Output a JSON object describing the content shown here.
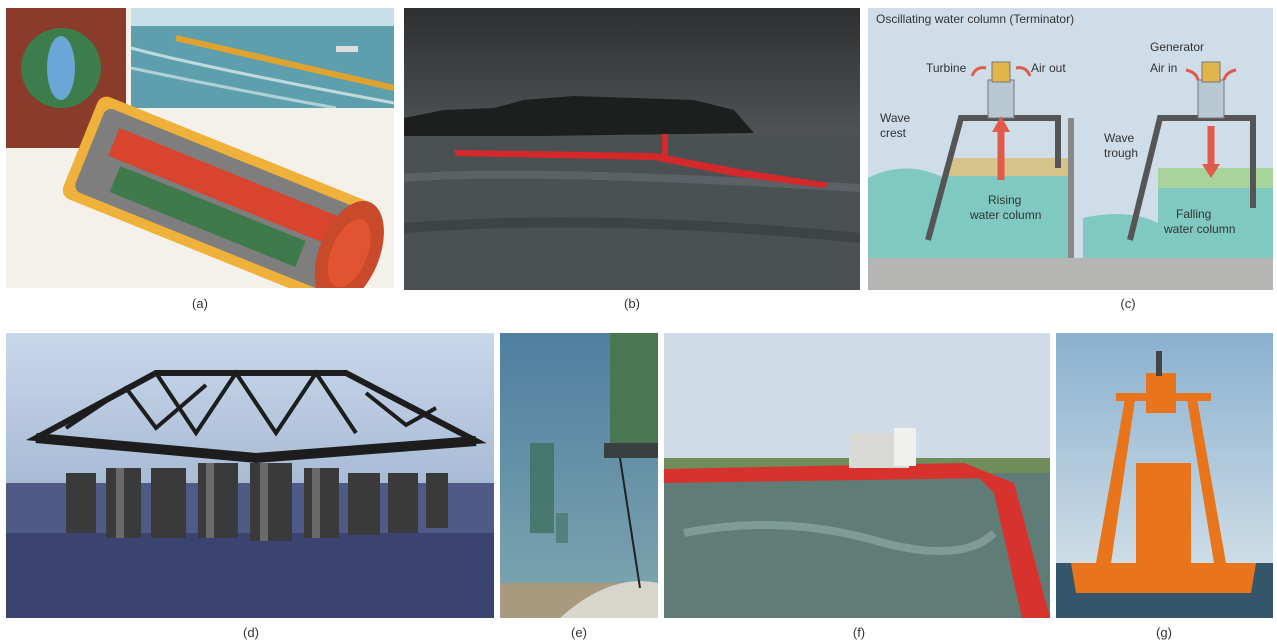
{
  "figure": {
    "panels": [
      {
        "id": "a",
        "caption": "(a)",
        "subject": "pelamis-attenuator-cutaway-and-array"
      },
      {
        "id": "b",
        "caption": "(b)",
        "subject": "red-attenuator-at-sea-photo"
      },
      {
        "id": "c",
        "caption": "(c)",
        "subject": "oscillating-water-column-diagram"
      },
      {
        "id": "d",
        "caption": "(d)",
        "subject": "truss-platform-with-buoys-render"
      },
      {
        "id": "e",
        "caption": "(e)",
        "subject": "underwater-buoy-render"
      },
      {
        "id": "f",
        "caption": "(f)",
        "subject": "floating-overtopping-device-photo"
      },
      {
        "id": "g",
        "caption": "(g)",
        "subject": "orange-power-buoy-photo"
      }
    ],
    "diagram_c": {
      "title": "Oscillating water column (Terminator)",
      "left": {
        "turbine": "Turbine",
        "air": "Air out",
        "wave_line1": "Wave",
        "wave_line2": "crest",
        "column_line1": "Rising",
        "column_line2": "water column"
      },
      "right": {
        "generator": "Generator",
        "air": "Air in",
        "wave_line1": "Wave",
        "wave_line2": "trough",
        "column_line1": "Falling",
        "column_line2": "water column"
      }
    },
    "colors": {
      "water": "#7fc9c0",
      "device_red": "#d8302e",
      "buoy_orange": "#e8741c",
      "sky": "#b9d3e6",
      "arrow": "#e25a4a"
    }
  }
}
